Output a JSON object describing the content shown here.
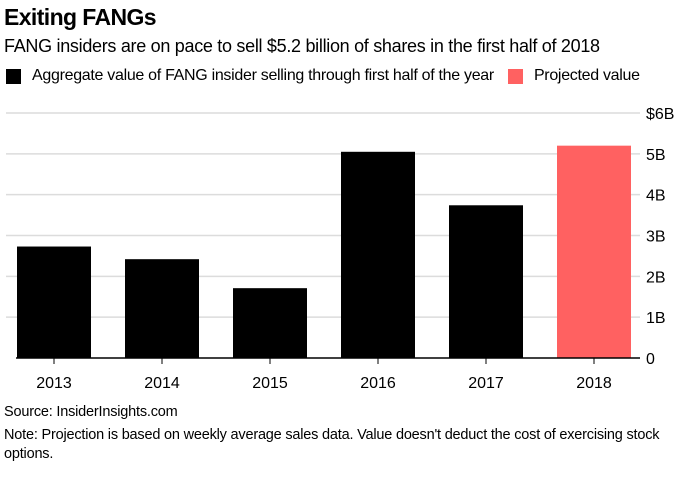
{
  "title": "Exiting FANGs",
  "subtitle": "FANG insiders are on pace to sell $5.2 billion of shares in the first half of 2018",
  "legend": [
    {
      "label": "Aggregate value of FANG insider selling through first half of the year",
      "color": "#000000"
    },
    {
      "label": "Projected value",
      "color": "#ff6161"
    }
  ],
  "source": "Source: InsiderInsights.com",
  "note": "Note: Projection is based on weekly average sales data. Value doesn't deduct the cost of exercising stock options.",
  "chart_data": {
    "type": "bar",
    "title": "Exiting FANGs",
    "subtitle": "FANG insiders are on pace to sell $5.2 billion of shares in the first half of 2018",
    "xlabel": "",
    "ylabel": "",
    "categories": [
      "2013",
      "2014",
      "2015",
      "2016",
      "2017",
      "2018"
    ],
    "series": [
      {
        "name": "Aggregate value of FANG insider selling through first half of the year",
        "values": [
          2.73,
          2.42,
          1.71,
          5.05,
          3.74,
          null
        ],
        "color": "#000000"
      },
      {
        "name": "Projected value",
        "values": [
          null,
          null,
          null,
          null,
          null,
          5.2
        ],
        "color": "#ff6161"
      }
    ],
    "ylim": [
      0,
      6
    ],
    "yticks": [
      0,
      1,
      2,
      3,
      4,
      5,
      6
    ],
    "ytick_labels": [
      "0",
      "1B",
      "2B",
      "3B",
      "4B",
      "5B",
      "$6B"
    ],
    "y_axis_side": "right",
    "grid": true,
    "legend_position": "top-left"
  }
}
